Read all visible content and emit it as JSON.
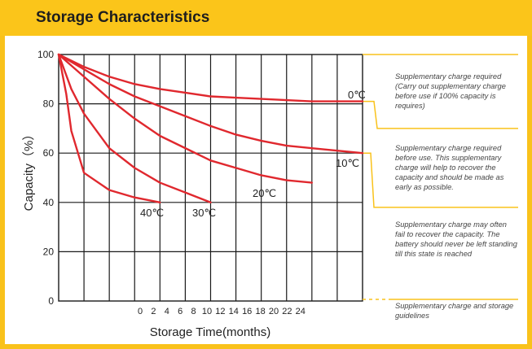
{
  "header": {
    "title": "Storage Characteristics"
  },
  "chart_data": {
    "type": "line",
    "xlabel": "Storage Time(months)",
    "ylabel": "Capacity（%）",
    "x_ticks": [
      "0",
      "2",
      "4",
      "6",
      "8",
      "10",
      "12",
      "14",
      "16",
      "18",
      "20",
      "22",
      "24"
    ],
    "y_ticks": [
      "0",
      "20",
      "40",
      "60",
      "80",
      "100"
    ],
    "xlim": [
      0,
      24
    ],
    "ylim": [
      0,
      100
    ],
    "grid": true,
    "series": [
      {
        "name": "0℃",
        "x": [
          0,
          2,
          4,
          6,
          8,
          10,
          12,
          14,
          16,
          18,
          20,
          22,
          24
        ],
        "y": [
          100,
          95,
          91,
          88,
          86,
          84.5,
          83,
          82.5,
          82,
          81.5,
          81,
          81,
          81
        ]
      },
      {
        "name": "10℃",
        "x": [
          0,
          2,
          4,
          6,
          8,
          10,
          12,
          14,
          16,
          18,
          20,
          22,
          24
        ],
        "y": [
          100,
          94,
          88,
          83,
          79,
          75,
          71,
          67.5,
          65,
          63,
          62,
          61,
          60
        ]
      },
      {
        "name": "20℃",
        "x": [
          0,
          2,
          4,
          6,
          8,
          10,
          12,
          14,
          16,
          18,
          20
        ],
        "y": [
          100,
          91,
          82,
          74,
          67,
          62,
          57,
          54,
          51,
          49,
          48
        ]
      },
      {
        "name": "30℃",
        "x": [
          0,
          1,
          2,
          4,
          6,
          8,
          10,
          12
        ],
        "y": [
          100,
          86,
          76,
          62,
          54,
          48,
          44,
          40
        ]
      },
      {
        "name": "40℃",
        "x": [
          0,
          0.6,
          1,
          2,
          4,
          6,
          8
        ],
        "y": [
          100,
          84,
          69,
          52,
          45,
          42,
          40
        ]
      }
    ]
  },
  "notes": [
    "Supplementary charge required (Carry out supplementary charge before use if 100% capacity is requires)",
    "Supplementary charge required before use. This supplementary charge will help to recover the capacity and should be made  as early as possible.",
    "Supplementary charge may often fail to recover the capacity. The battery should never be left standing till this state is reached",
    "Supplementary charge and storage guidelines"
  ],
  "colors": {
    "accent": "#f9c21b",
    "line": "#e0282e",
    "grid": "#1a1a1a"
  }
}
